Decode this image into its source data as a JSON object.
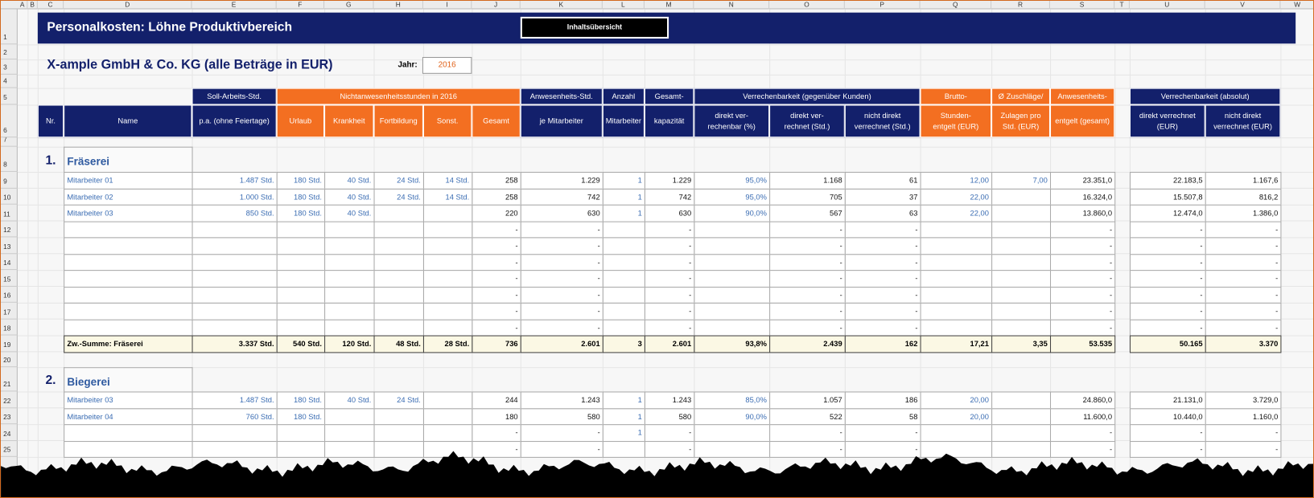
{
  "column_letters": [
    "A",
    "B",
    "C",
    "D",
    "E",
    "F",
    "G",
    "H",
    "I",
    "J",
    "K",
    "L",
    "M",
    "N",
    "O",
    "P",
    "Q",
    "R",
    "S",
    "T",
    "U",
    "V",
    "W"
  ],
  "row_numbers": [
    "1",
    "2",
    "3",
    "4",
    "5",
    "6",
    "7",
    "8",
    "9",
    "10",
    "11",
    "12",
    "13",
    "14",
    "15",
    "16",
    "17",
    "18",
    "19",
    "20",
    "21",
    "22",
    "23",
    "24",
    "25"
  ],
  "header": {
    "title": "Personalkosten: Löhne Produktivbereich",
    "button": "Inhaltsübersicht",
    "company": "X-ample GmbH & Co. KG (alle Beträge in EUR)",
    "year_label": "Jahr:",
    "year": "2016"
  },
  "column_groups": [
    {
      "label": "Soll-Arbeits-Std.",
      "color": "#13206b"
    },
    {
      "label": "Nichtanwesenheitsstunden in 2016",
      "color": "#f36f21"
    },
    {
      "label": "Anwesenheits-Std.",
      "color": "#13206b"
    },
    {
      "label": "Anzahl",
      "color": "#13206b"
    },
    {
      "label": "Gesamt-",
      "color": "#13206b"
    },
    {
      "label": "Verrechenbarkeit (gegenüber Kunden)",
      "color": "#13206b"
    },
    {
      "label": "Brutto-",
      "color": "#f36f21"
    },
    {
      "label": "Ø Zuschläge/",
      "color": "#f36f21"
    },
    {
      "label": "Anwesenheits-",
      "color": "#f36f21"
    },
    {
      "label": "Verrechenbarkeit (absolut)",
      "color": "#13206b"
    }
  ],
  "column_labels": [
    {
      "label": "Nr.",
      "color": "#13206b"
    },
    {
      "label": "Name",
      "color": "#13206b"
    },
    {
      "label": "p.a. (ohne Feiertage)",
      "color": "#13206b"
    },
    {
      "label": "Urlaub",
      "color": "#f36f21"
    },
    {
      "label": "Krankheit",
      "color": "#f36f21"
    },
    {
      "label": "Fortbildung",
      "color": "#f36f21"
    },
    {
      "label": "Sonst.",
      "color": "#f36f21"
    },
    {
      "label": "Gesamt",
      "color": "#f36f21"
    },
    {
      "label": "je Mitarbeiter",
      "color": "#13206b"
    },
    {
      "label": "Mitarbeiter",
      "color": "#13206b"
    },
    {
      "label": "kapazität",
      "color": "#13206b"
    },
    {
      "label": "direkt ver-\nrechenbar (%)",
      "color": "#13206b"
    },
    {
      "label": "direkt ver-\nrechnet (Std.)",
      "color": "#13206b"
    },
    {
      "label": "nicht direkt\nverrechnet (Std.)",
      "color": "#13206b"
    },
    {
      "label": "Stunden-\nentgelt (EUR)",
      "color": "#f36f21"
    },
    {
      "label": "Zulagen pro\nStd. (EUR)",
      "color": "#f36f21"
    },
    {
      "label": "entgelt (gesamt)",
      "color": "#f36f21"
    },
    {
      "label": "direkt verrechnet\n(EUR)",
      "color": "#13206b"
    },
    {
      "label": "nicht direkt\nverrechnet (EUR)",
      "color": "#13206b"
    }
  ],
  "sections": [
    {
      "number": "1.",
      "name": "Fräserei",
      "rows": [
        [
          "Mitarbeiter 01",
          "1.487 Std.",
          "180 Std.",
          "40 Std.",
          "24 Std.",
          "14 Std.",
          "258",
          "1.229",
          "1",
          "1.229",
          "95,0%",
          "1.168",
          "61",
          "12,00",
          "7,00",
          "23.351,0",
          "22.183,5",
          "1.167,6"
        ],
        [
          "Mitarbeiter 02",
          "1.000 Std.",
          "180 Std.",
          "40 Std.",
          "24 Std.",
          "14 Std.",
          "258",
          "742",
          "1",
          "742",
          "95,0%",
          "705",
          "37",
          "22,00",
          null,
          "16.324,0",
          "15.507,8",
          "816,2"
        ],
        [
          "Mitarbeiter 03",
          "850 Std.",
          "180 Std.",
          "40 Std.",
          null,
          null,
          "220",
          "630",
          "1",
          "630",
          "90,0%",
          "567",
          "63",
          "22,00",
          null,
          "13.860,0",
          "12.474,0",
          "1.386,0"
        ],
        [
          null,
          null,
          null,
          null,
          null,
          null,
          "-",
          "-",
          null,
          "-",
          null,
          "-",
          "-",
          null,
          null,
          "-",
          "-",
          "-"
        ],
        [
          null,
          null,
          null,
          null,
          null,
          null,
          "-",
          "-",
          null,
          "-",
          null,
          "-",
          "-",
          null,
          null,
          "-",
          "-",
          "-"
        ],
        [
          null,
          null,
          null,
          null,
          null,
          null,
          "-",
          "-",
          null,
          "-",
          null,
          "-",
          "-",
          null,
          null,
          "-",
          "-",
          "-"
        ],
        [
          null,
          null,
          null,
          null,
          null,
          null,
          "-",
          "-",
          null,
          "-",
          null,
          "-",
          "-",
          null,
          null,
          "-",
          "-",
          "-"
        ],
        [
          null,
          null,
          null,
          null,
          null,
          null,
          "-",
          "-",
          null,
          "-",
          null,
          "-",
          "-",
          null,
          null,
          "-",
          "-",
          "-"
        ],
        [
          null,
          null,
          null,
          null,
          null,
          null,
          "-",
          "-",
          null,
          "-",
          null,
          "-",
          "-",
          null,
          null,
          "-",
          "-",
          "-"
        ],
        [
          null,
          null,
          null,
          null,
          null,
          null,
          "-",
          "-",
          null,
          "-",
          null,
          "-",
          "-",
          null,
          null,
          "-",
          "-",
          "-"
        ]
      ],
      "subtotal": [
        "Zw.-Summe: Fräserei",
        "3.337 Std.",
        "540 Std.",
        "120 Std.",
        "48 Std.",
        "28 Std.",
        "736",
        "2.601",
        "3",
        "2.601",
        "93,8%",
        "2.439",
        "162",
        "17,21",
        "3,35",
        "53.535",
        "50.165",
        "3.370"
      ]
    },
    {
      "number": "2.",
      "name": "Biegerei",
      "rows": [
        [
          "Mitarbeiter 03",
          "1.487 Std.",
          "180 Std.",
          "40 Std.",
          "24 Std.",
          null,
          "244",
          "1.243",
          "1",
          "1.243",
          "85,0%",
          "1.057",
          "186",
          "20,00",
          null,
          "24.860,0",
          "21.131,0",
          "3.729,0"
        ],
        [
          "Mitarbeiter 04",
          "760 Std.",
          "180 Std.",
          null,
          null,
          null,
          "180",
          "580",
          "1",
          "580",
          "90,0%",
          "522",
          "58",
          "20,00",
          null,
          "11.600,0",
          "10.440,0",
          "1.160,0"
        ],
        [
          null,
          null,
          null,
          null,
          null,
          null,
          "-",
          "-",
          "1",
          "-",
          null,
          "-",
          "-",
          null,
          null,
          "-",
          "-",
          "-"
        ],
        [
          null,
          null,
          null,
          null,
          null,
          null,
          "-",
          "-",
          null,
          "-",
          null,
          "-",
          "-",
          null,
          null,
          "-",
          "-",
          "-"
        ]
      ]
    }
  ]
}
